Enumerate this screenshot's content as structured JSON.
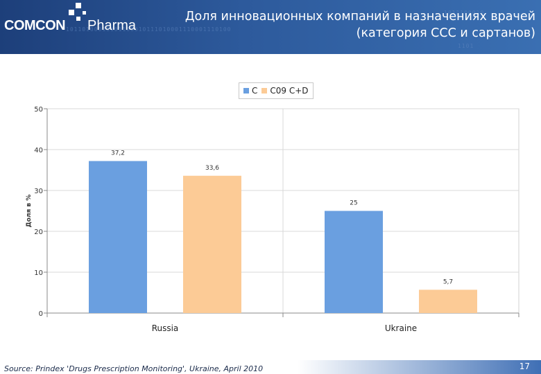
{
  "header": {
    "logo_brand": "COMCON",
    "logo_product": "Pharma",
    "title": "Доля инновационных компаний в назначениях врачей (категория ССС и сартанов)",
    "binary_a": "10110100010101100010111010001110001110100",
    "binary_b": "1011100010",
    "binary_c": "1101"
  },
  "colors": {
    "series_c": "#6a9fe0",
    "series_c09": "#fccb96",
    "header_bg": "#2d5a9c"
  },
  "chart_data": {
    "type": "bar",
    "categories": [
      "Russia",
      "Ukraine"
    ],
    "series": [
      {
        "name": "C",
        "values": [
          37.2,
          25
        ],
        "labels": [
          "37,2",
          "25"
        ],
        "color": "#6a9fe0"
      },
      {
        "name": "C09 C+D",
        "values": [
          33.6,
          5.7
        ],
        "labels": [
          "33,6",
          "5,7"
        ],
        "color": "#fccb96"
      }
    ],
    "ylabel": "Доля в %",
    "xlabel": "",
    "ylim": [
      0,
      50
    ],
    "yticks": [
      0,
      10,
      20,
      30,
      40,
      50
    ],
    "grid": true,
    "legend": "top-center"
  },
  "footer": {
    "source": "Source: Prindex 'Drugs Prescription Monitoring', Ukraine, April 2010",
    "page": "17"
  }
}
